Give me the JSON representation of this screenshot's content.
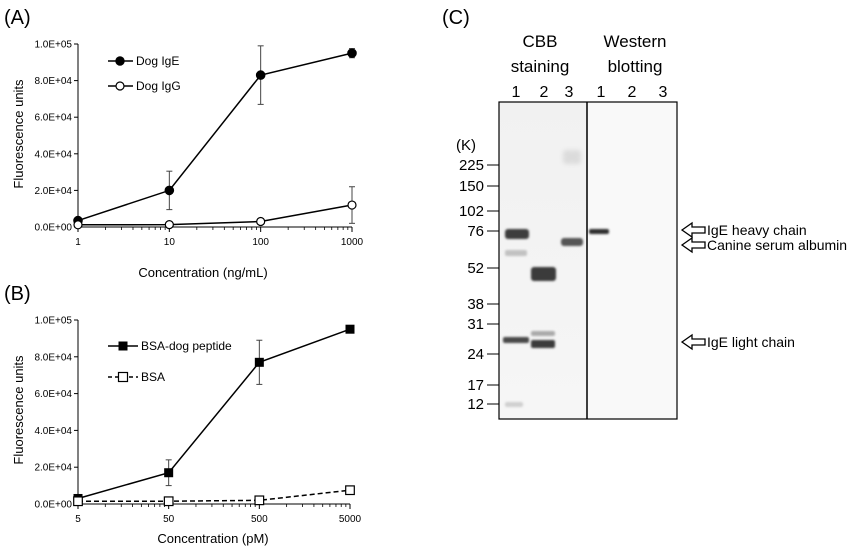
{
  "panels": {
    "A": "(A)",
    "B": "(B)",
    "C": "(C)"
  },
  "chart_data": [
    {
      "type": "line",
      "panel": "A",
      "xlabel": "Concentration (ng/mL)",
      "ylabel": "Fluorescence units",
      "x_scale": "log",
      "x": [
        1,
        10,
        100,
        1000
      ],
      "x_tick_labels": [
        "1",
        "10",
        "100",
        "1000"
      ],
      "ylim": [
        0,
        100000
      ],
      "y_tick_labels": [
        "0.0E+00",
        "2.0E+04",
        "4.0E+04",
        "6.0E+04",
        "8.0E+04",
        "1.0E+05"
      ],
      "legend_position": "top-left",
      "series": [
        {
          "name": "Dog IgE",
          "marker": "filled-circle",
          "line": "solid",
          "values": [
            3500,
            20000,
            83000,
            95000
          ],
          "errors": [
            0,
            10500,
            16000,
            2500
          ]
        },
        {
          "name": "Dog IgG",
          "marker": "open-circle",
          "line": "solid",
          "values": [
            1200,
            1300,
            3000,
            12000
          ],
          "errors": [
            0,
            0,
            0,
            10000
          ]
        }
      ]
    },
    {
      "type": "line",
      "panel": "B",
      "xlabel": "Concentration (pM)",
      "ylabel": "Fluorescence units",
      "x_scale": "log",
      "x": [
        5,
        50,
        500,
        5000
      ],
      "x_tick_labels": [
        "5",
        "50",
        "500",
        "5000"
      ],
      "ylim": [
        0,
        100000
      ],
      "y_tick_labels": [
        "0.0E+00",
        "2.0E+04",
        "4.0E+04",
        "6.0E+04",
        "8.0E+04",
        "1.0E+05"
      ],
      "legend_position": "top-left",
      "series": [
        {
          "name": "BSA-dog peptide",
          "marker": "filled-square",
          "line": "solid",
          "values": [
            3000,
            17000,
            77000,
            95000
          ],
          "errors": [
            0,
            7000,
            12000,
            0
          ]
        },
        {
          "name": "BSA",
          "marker": "open-square",
          "line": "dashed",
          "values": [
            1500,
            1500,
            2000,
            7500
          ],
          "errors": [
            0,
            0,
            0,
            0
          ]
        }
      ]
    }
  ],
  "gel": {
    "cbb_title_line1": "CBB",
    "cbb_title_line2": "staining",
    "wb_title_line1": "Western",
    "wb_title_line2": "blotting",
    "cbb_lanes": [
      "1",
      "2",
      "3"
    ],
    "wb_lanes": [
      "1",
      "2",
      "3"
    ],
    "unit_label": "(K)",
    "markers": [
      {
        "label": "225",
        "kda": 225
      },
      {
        "label": "150",
        "kda": 150
      },
      {
        "label": "102",
        "kda": 102
      },
      {
        "label": "76",
        "kda": 76
      },
      {
        "label": "52",
        "kda": 52
      },
      {
        "label": "38",
        "kda": 38
      },
      {
        "label": "31",
        "kda": 31
      },
      {
        "label": "24",
        "kda": 24
      },
      {
        "label": "17",
        "kda": 17
      },
      {
        "label": "12",
        "kda": 12
      }
    ],
    "annotations": [
      {
        "label": "IgE heavy chain",
        "arrow": true
      },
      {
        "label": "Canine serum albumin",
        "arrow": true
      },
      {
        "label": "IgE light chain",
        "arrow": true
      }
    ]
  }
}
